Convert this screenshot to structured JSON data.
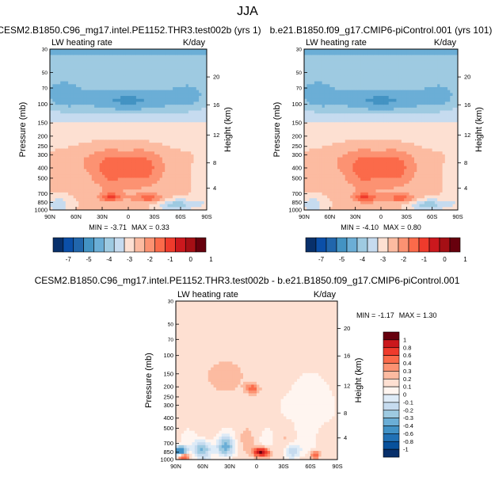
{
  "page": {
    "title": "JJA"
  },
  "colors": {
    "border": "#000000",
    "bg": "#ffffff",
    "full_scale": [
      "#08306b",
      "#0b4fa8",
      "#2166ac",
      "#4393c3",
      "#6baed6",
      "#9ecae1",
      "#c6dbef",
      "#fde0d2",
      "#fcbba1",
      "#fc9272",
      "#fb6a4a",
      "#ef3b2c",
      "#cb181d",
      "#a50f15",
      "#67000d"
    ],
    "diff_scale": [
      "#08306b",
      "#08519c",
      "#2171b5",
      "#4292c6",
      "#6baed6",
      "#9ecae1",
      "#c6dbef",
      "#deebf7",
      "#fff5f0",
      "#fee0d2",
      "#fcbba1",
      "#fc9272",
      "#fb6a4a",
      "#ef3b2c",
      "#cb181d",
      "#67000d"
    ]
  },
  "chart_data": [
    {
      "id": "case",
      "type": "heatmap",
      "title": "CESM2.B1850.C96_mg17.intel.PE1152.THR3.test002b (yrs 1)",
      "left_string": "LW heating rate",
      "right_string": "K/day",
      "ylabel": "Pressure (mb)",
      "ylabel_right": "Height (km)",
      "xticks": [
        "90N",
        "60N",
        "30N",
        "0",
        "30S",
        "60S",
        "90S"
      ],
      "xlim": [
        90,
        -90
      ],
      "yticks": [
        "30",
        "50",
        "70",
        "100",
        "150",
        "200",
        "250",
        "300",
        "400",
        "500",
        "700",
        "850",
        "1000"
      ],
      "ylim": [
        30,
        1000
      ],
      "height_ticks": [
        "20",
        "16",
        "12",
        "8",
        "4"
      ],
      "stats": {
        "min_label": "MIN =",
        "min": "-3.71",
        "max_label": "MAX =",
        "max": "0.33"
      },
      "colorbar": {
        "labels": [
          "-7",
          "-5",
          "-4",
          "-3",
          "-2",
          "-1",
          "0",
          "1"
        ]
      }
    },
    {
      "id": "control",
      "type": "heatmap",
      "title": "b.e21.B1850.f09_g17.CMIP6-piControl.001 (yrs 101)",
      "left_string": "LW heating rate",
      "right_string": "K/day",
      "ylabel": "Pressure (mb)",
      "ylabel_right": "Height (km)",
      "xticks": [
        "90N",
        "60N",
        "30N",
        "0",
        "30S",
        "60S",
        "90S"
      ],
      "xlim": [
        90,
        -90
      ],
      "yticks": [
        "30",
        "50",
        "70",
        "100",
        "150",
        "200",
        "250",
        "300",
        "400",
        "500",
        "700",
        "850",
        "1000"
      ],
      "ylim": [
        30,
        1000
      ],
      "height_ticks": [
        "20",
        "16",
        "12",
        "8",
        "4"
      ],
      "stats": {
        "min_label": "MIN =",
        "min": "-4.10",
        "max_label": "MAX =",
        "max": "0.80"
      },
      "colorbar": {
        "labels": [
          "-7",
          "-5",
          "-4",
          "-3",
          "-2",
          "-1",
          "0",
          "1"
        ]
      }
    },
    {
      "id": "diff",
      "type": "heatmap",
      "title": "CESM2.B1850.C96_mg17.intel.PE1152.THR3.test002b - b.e21.B1850.f09_g17.CMIP6-piControl.001",
      "left_string": "LW heating rate",
      "right_string": "K/day",
      "ylabel": "Pressure (mb)",
      "ylabel_right": "Height (km)",
      "xticks": [
        "90N",
        "60N",
        "30N",
        "0",
        "30S",
        "60S",
        "90S"
      ],
      "xlim": [
        90,
        -90
      ],
      "yticks": [
        "30",
        "50",
        "70",
        "100",
        "150",
        "200",
        "250",
        "300",
        "400",
        "500",
        "700",
        "850",
        "1000"
      ],
      "ylim": [
        30,
        1000
      ],
      "height_ticks": [
        "20",
        "16",
        "12",
        "8",
        "4"
      ],
      "stats": {
        "min_label": "MIN =",
        "min": "-1.17",
        "max_label": "MAX =",
        "max": "1.30"
      },
      "colorbar": {
        "labels": [
          "1",
          "0.8",
          "0.6",
          "0.4",
          "0.3",
          "0.2",
          "0.1",
          "0",
          "-0.1",
          "-0.2",
          "-0.3",
          "-0.4",
          "-0.6",
          "-0.8",
          "-1"
        ]
      }
    }
  ]
}
